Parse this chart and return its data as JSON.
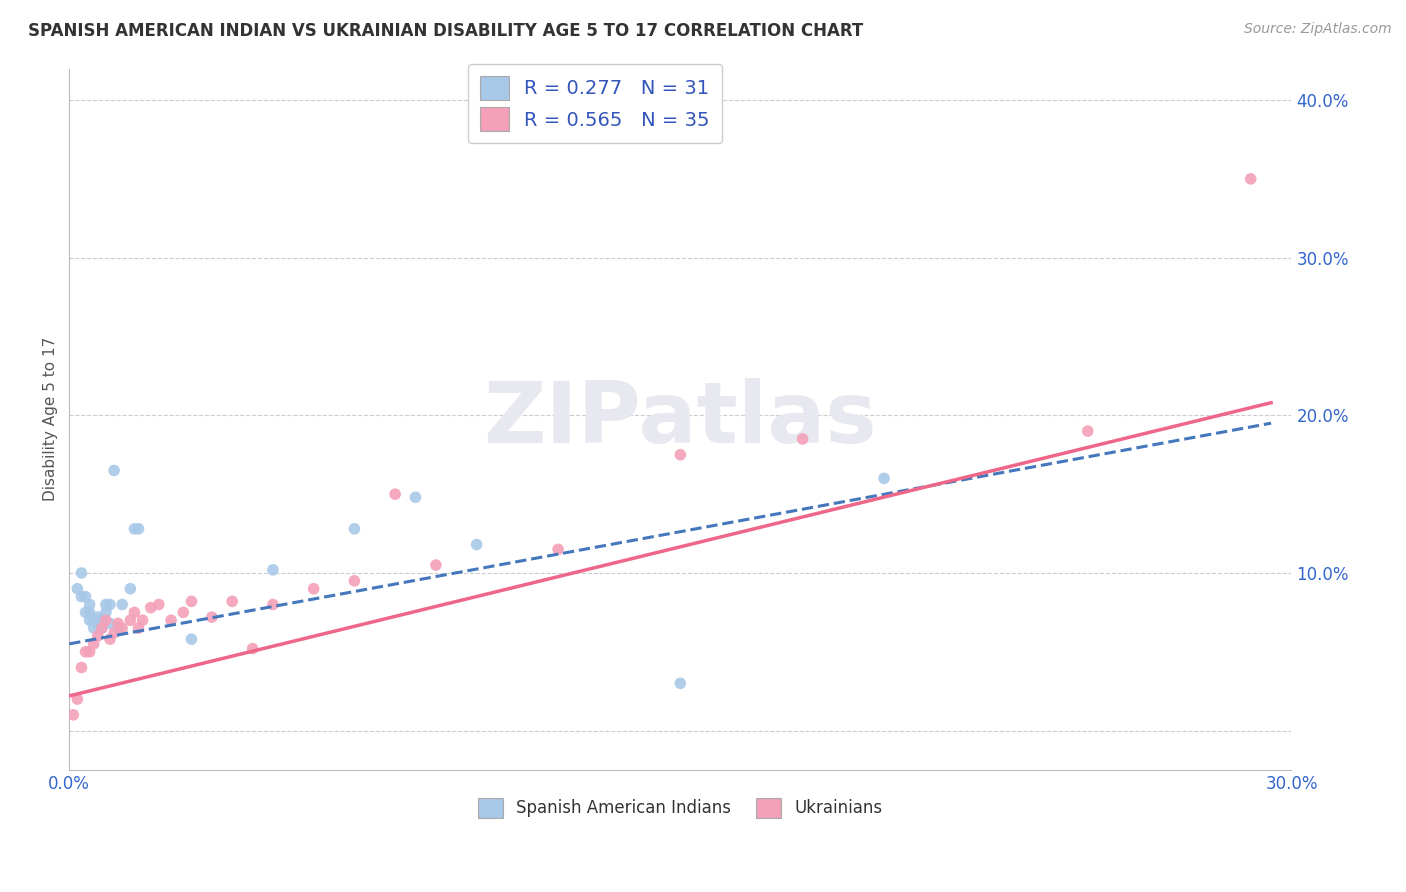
{
  "title": "SPANISH AMERICAN INDIAN VS UKRAINIAN DISABILITY AGE 5 TO 17 CORRELATION CHART",
  "source": "Source: ZipAtlas.com",
  "ylabel": "Disability Age 5 to 17",
  "xlim": [
    0.0,
    0.3
  ],
  "ylim": [
    -0.025,
    0.42
  ],
  "grid_color": "#cccccc",
  "background_color": "#ffffff",
  "series1_color": "#a8c8e8",
  "series2_color": "#f4a0b8",
  "series1_line_color": "#4477bb",
  "series2_line_color": "#ee6688",
  "legend1_label": "R = 0.277   N = 31",
  "legend2_label": "R = 0.565   N = 35",
  "legend_title1": "Spanish American Indians",
  "legend_title2": "Ukrainians",
  "spanish_x": [
    0.002,
    0.003,
    0.003,
    0.004,
    0.004,
    0.005,
    0.005,
    0.005,
    0.006,
    0.006,
    0.007,
    0.007,
    0.008,
    0.008,
    0.009,
    0.009,
    0.01,
    0.01,
    0.011,
    0.012,
    0.013,
    0.015,
    0.016,
    0.017,
    0.03,
    0.05,
    0.07,
    0.085,
    0.1,
    0.15,
    0.2
  ],
  "spanish_y": [
    0.09,
    0.085,
    0.1,
    0.075,
    0.085,
    0.07,
    0.075,
    0.08,
    0.065,
    0.07,
    0.068,
    0.072,
    0.065,
    0.07,
    0.075,
    0.08,
    0.068,
    0.08,
    0.165,
    0.065,
    0.08,
    0.09,
    0.128,
    0.128,
    0.058,
    0.102,
    0.128,
    0.148,
    0.118,
    0.03,
    0.16
  ],
  "ukrainian_x": [
    0.001,
    0.002,
    0.003,
    0.004,
    0.005,
    0.006,
    0.007,
    0.008,
    0.009,
    0.01,
    0.011,
    0.012,
    0.013,
    0.015,
    0.016,
    0.017,
    0.018,
    0.02,
    0.022,
    0.025,
    0.028,
    0.03,
    0.035,
    0.04,
    0.045,
    0.05,
    0.06,
    0.07,
    0.08,
    0.09,
    0.12,
    0.15,
    0.18,
    0.25,
    0.29
  ],
  "ukrainian_y": [
    0.01,
    0.02,
    0.04,
    0.05,
    0.05,
    0.055,
    0.06,
    0.065,
    0.07,
    0.058,
    0.062,
    0.068,
    0.065,
    0.07,
    0.075,
    0.065,
    0.07,
    0.078,
    0.08,
    0.07,
    0.075,
    0.082,
    0.072,
    0.082,
    0.052,
    0.08,
    0.09,
    0.095,
    0.15,
    0.105,
    0.115,
    0.175,
    0.185,
    0.19,
    0.35
  ],
  "trendline1_x0": 0.0,
  "trendline1_y0": 0.055,
  "trendline1_x1": 0.295,
  "trendline1_y1": 0.195,
  "trendline2_x0": 0.0,
  "trendline2_y0": 0.022,
  "trendline2_x1": 0.295,
  "trendline2_y1": 0.208
}
